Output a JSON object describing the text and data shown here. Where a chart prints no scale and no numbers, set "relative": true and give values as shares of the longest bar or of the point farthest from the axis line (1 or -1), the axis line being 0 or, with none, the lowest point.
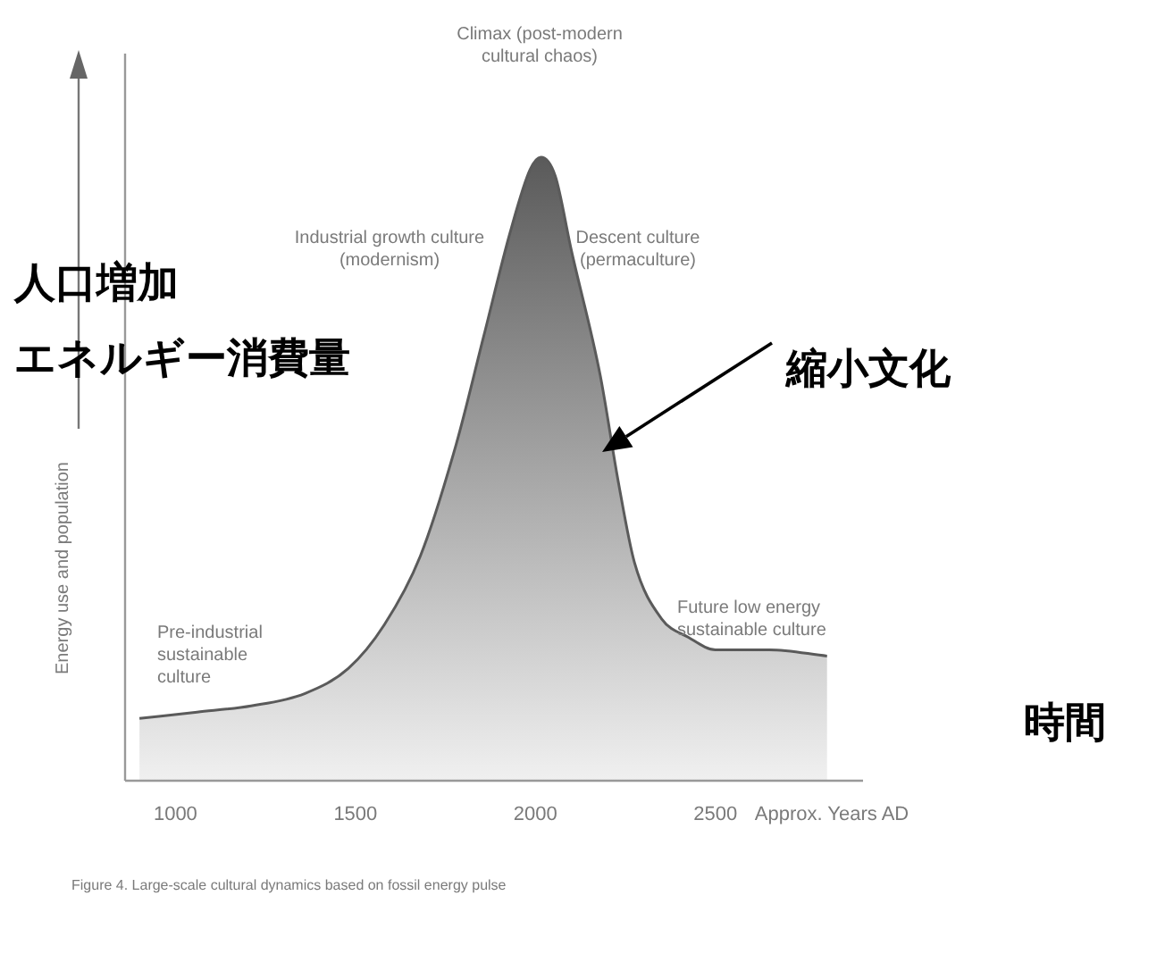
{
  "chart_data": {
    "type": "area",
    "relative": true,
    "ylabel": "Energy use and population",
    "xlabel": "Approx. Years AD",
    "xlim": [
      860,
      2910
    ],
    "xticks": [
      1000,
      1500,
      2000,
      2500
    ],
    "x": [
      900,
      1060,
      1210,
      1360,
      1480,
      1580,
      1680,
      1780,
      1855,
      1930,
      1985,
      2015,
      2055,
      2100,
      2180,
      2230,
      2275,
      2350,
      2425,
      2500,
      2650,
      2810
    ],
    "values": [
      0.1,
      0.11,
      0.12,
      0.14,
      0.18,
      0.25,
      0.36,
      0.54,
      0.71,
      0.88,
      0.98,
      1,
      0.97,
      0.85,
      0.65,
      0.48,
      0.35,
      0.26,
      0.23,
      0.21,
      0.21,
      0.2
    ],
    "color": "#5a5a5a",
    "annotations": [
      "Climax (post-modern cultural chaos)",
      "Industrial growth culture (modernism)",
      "Descent culture (permaculture)",
      "Pre-industrial sustainable culture",
      "Future low energy sustainable culture",
      "縮小文化",
      "人口増加",
      "エネルギー消費量",
      "時間",
      "Figure 4. Large-scale cultural dynamics based on fossil energy pulse"
    ]
  }
}
